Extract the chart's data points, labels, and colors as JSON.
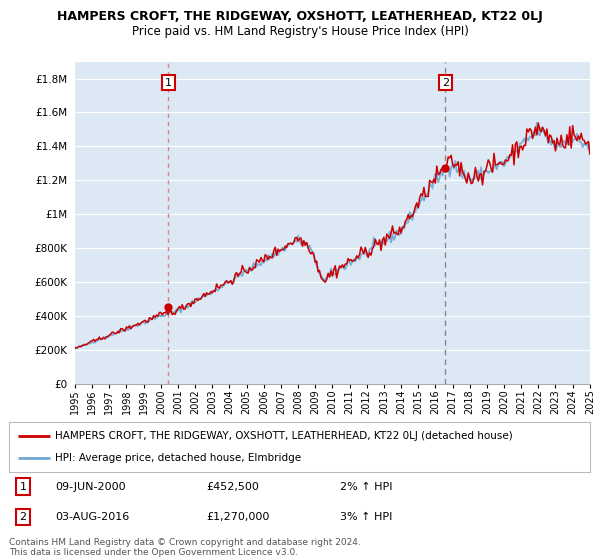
{
  "title": "HAMPERS CROFT, THE RIDGEWAY, OXSHOTT, LEATHERHEAD, KT22 0LJ",
  "subtitle": "Price paid vs. HM Land Registry's House Price Index (HPI)",
  "ylim": [
    0,
    1900000
  ],
  "yticks": [
    0,
    200000,
    400000,
    600000,
    800000,
    1000000,
    1200000,
    1400000,
    1600000,
    1800000
  ],
  "ytick_labels": [
    "£0",
    "£200K",
    "£400K",
    "£600K",
    "£800K",
    "£1M",
    "£1.2M",
    "£1.4M",
    "£1.6M",
    "£1.8M"
  ],
  "x_start_year": 1995,
  "x_end_year": 2025,
  "background_color": "#ffffff",
  "chart_bg_color": "#dce9f5",
  "grid_color": "#ffffff",
  "hpi_color": "#6fa8d4",
  "price_color": "#cc0000",
  "sale1_year": 2000.44,
  "sale1_price": 452500,
  "sale2_year": 2016.59,
  "sale2_price": 1270000,
  "vline1_color": "#e08080",
  "vline2_color": "#888888",
  "legend_label1": "HAMPERS CROFT, THE RIDGEWAY, OXSHOTT, LEATHERHEAD, KT22 0LJ (detached house)",
  "legend_label2": "HPI: Average price, detached house, Elmbridge",
  "annotation1_date": "09-JUN-2000",
  "annotation1_price": "£452,500",
  "annotation1_hpi": "2% ↑ HPI",
  "annotation2_date": "03-AUG-2016",
  "annotation2_price": "£1,270,000",
  "annotation2_hpi": "3% ↑ HPI",
  "footer": "Contains HM Land Registry data © Crown copyright and database right 2024.\nThis data is licensed under the Open Government Licence v3.0."
}
